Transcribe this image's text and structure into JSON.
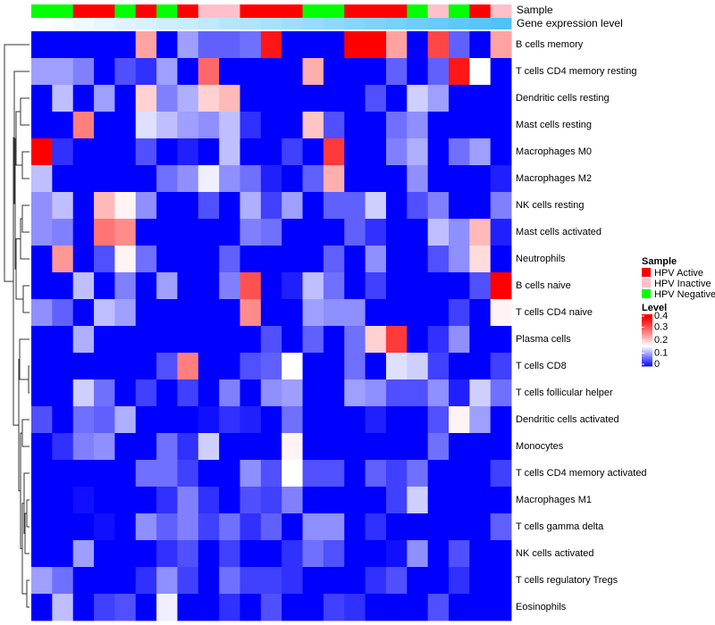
{
  "chart_data": {
    "type": "heatmap",
    "title": "",
    "annotation_labels": {
      "sample": "Sample",
      "gene": "Gene expression level"
    },
    "rows": [
      "B cells memory",
      "T cells CD4 memory resting",
      "Dendritic cells resting",
      "Mast cells resting",
      "Macrophages M0",
      "Macrophages M2",
      "NK cells resting",
      "Mast cells activated",
      "Neutrophils",
      "B cells naive",
      "T cells CD4 naive",
      "Plasma cells",
      "T cells CD8",
      "T cells follicular helper",
      "Dendritic cells activated",
      "Monocytes",
      "T cells CD4 memory activated",
      "Macrophages M1",
      "T cells gamma delta",
      "NK cells activated",
      "T cells regulatory  Tregs",
      "Eosinophils"
    ],
    "column_sample": [
      "HPV Negative",
      "HPV Negative",
      "HPV Active",
      "HPV Active",
      "HPV Negative",
      "HPV Active",
      "HPV Negative",
      "HPV Active",
      "HPV Inactive",
      "HPV Inactive",
      "HPV Active",
      "HPV Active",
      "HPV Active",
      "HPV Negative",
      "HPV Negative",
      "HPV Active",
      "HPV Active",
      "HPV Active",
      "HPV Negative",
      "HPV Inactive",
      "HPV Negative",
      "HPV Active",
      "HPV Inactive"
    ],
    "column_gene_expression_level": [
      0,
      0.045,
      0.09,
      0.136,
      0.18,
      0.227,
      0.27,
      0.318,
      0.36,
      0.41,
      0.45,
      0.5,
      0.545,
      0.59,
      0.636,
      0.68,
      0.727,
      0.77,
      0.818,
      0.86,
      0.91,
      0.955,
      1
    ],
    "values": [
      [
        0,
        0,
        0,
        0,
        0,
        0.24,
        0,
        0.1,
        0.06,
        0.06,
        0.07,
        0.36,
        0,
        0,
        0,
        0.38,
        0.38,
        0.24,
        0,
        0.32,
        0.06,
        0,
        0.24
      ],
      [
        0.1,
        0.1,
        0.08,
        0,
        0.05,
        0.03,
        0.1,
        0,
        0.29,
        0,
        0,
        0,
        0,
        0.23,
        0,
        0,
        0,
        0.06,
        0,
        0.06,
        0.36,
        0.16,
        0
      ],
      [
        0,
        0.12,
        0,
        0.1,
        0,
        0.2,
        0.08,
        0.11,
        0.2,
        0.22,
        0,
        0,
        0,
        0,
        0,
        0,
        0.05,
        0,
        0.13,
        0.1,
        0,
        0,
        0
      ],
      [
        0,
        0,
        0.27,
        0,
        0,
        0.14,
        0.12,
        0.1,
        0.09,
        0.12,
        0.03,
        0,
        0,
        0.21,
        0.05,
        0,
        0,
        0.07,
        0.09,
        0,
        0,
        0,
        0
      ],
      [
        0.38,
        0.03,
        0,
        0,
        0,
        0.05,
        0,
        0.02,
        0,
        0.12,
        0,
        0,
        0.04,
        0,
        0.33,
        0,
        0,
        0.08,
        0.11,
        0,
        0.07,
        0.1,
        0
      ],
      [
        0.12,
        0,
        0,
        0,
        0,
        0,
        0.07,
        0.09,
        0.15,
        0.09,
        0.07,
        0.02,
        0,
        0.06,
        0.23,
        0,
        0,
        0,
        0.09,
        0,
        0,
        0,
        0.02
      ],
      [
        0.09,
        0.12,
        0,
        0.22,
        0.17,
        0.09,
        0,
        0,
        0.05,
        0,
        0.11,
        0.04,
        0.1,
        0,
        0.06,
        0.06,
        0.13,
        0,
        0.05,
        0.08,
        0,
        0,
        0.08
      ],
      [
        0.09,
        0.08,
        0,
        0.28,
        0.26,
        0,
        0,
        0,
        0,
        0,
        0.08,
        0.07,
        0,
        0,
        0,
        0.06,
        0.03,
        0,
        0,
        0.12,
        0.09,
        0.22,
        0.02
      ],
      [
        0,
        0.25,
        0,
        0.05,
        0.17,
        0.07,
        0,
        0,
        0,
        0.06,
        0,
        0,
        0,
        0,
        0.06,
        0,
        0.09,
        0,
        0,
        0.05,
        0.09,
        0.19,
        0
      ],
      [
        0,
        0,
        0.12,
        0,
        0.08,
        0,
        0.1,
        0,
        0,
        0.08,
        0.31,
        0,
        0.02,
        0.12,
        0.07,
        0,
        0.04,
        0,
        0,
        0,
        0,
        0.05,
        0.38
      ],
      [
        0.09,
        0.06,
        0,
        0.12,
        0.1,
        0,
        0,
        0,
        0,
        0,
        0.26,
        0,
        0,
        0.1,
        0.09,
        0.09,
        0,
        0,
        0,
        0,
        0.04,
        0,
        0.17
      ],
      [
        0,
        0,
        0.11,
        0,
        0,
        0,
        0,
        0,
        0,
        0,
        0,
        0.05,
        0,
        0.06,
        0,
        0.07,
        0.2,
        0.33,
        0,
        0.03,
        0.09,
        0,
        0
      ],
      [
        0,
        0,
        0,
        0,
        0,
        0,
        0.05,
        0.27,
        0,
        0,
        0.05,
        0.06,
        0.16,
        0,
        0,
        0.07,
        0,
        0.14,
        0.13,
        0.04,
        0,
        0,
        0.04
      ],
      [
        0,
        0,
        0.13,
        0.07,
        0,
        0.04,
        0,
        0.04,
        0,
        0.08,
        0,
        0.09,
        0.1,
        0,
        0,
        0.1,
        0.09,
        0.05,
        0.05,
        0.09,
        0.02,
        0.13,
        0.07
      ],
      [
        0.05,
        0,
        0.07,
        0.06,
        0.11,
        0,
        0,
        0,
        0.01,
        0.03,
        0.02,
        0,
        0.07,
        0,
        0,
        0,
        0.02,
        0,
        0,
        0.05,
        0.17,
        0.1,
        0
      ],
      [
        0,
        0.03,
        0.08,
        0.09,
        0,
        0,
        0.07,
        0.03,
        0.13,
        0,
        0,
        0,
        0.17,
        0,
        0,
        0,
        0,
        0,
        0,
        0.07,
        0,
        0,
        0
      ],
      [
        0,
        0,
        0,
        0,
        0,
        0.07,
        0.07,
        0.04,
        0,
        0,
        0.09,
        0.05,
        0.16,
        0.05,
        0.05,
        0,
        0.06,
        0.04,
        0.07,
        0,
        0,
        0,
        0.04
      ],
      [
        0,
        0,
        0.01,
        0,
        0,
        0,
        0.03,
        0.08,
        0.03,
        0,
        0.05,
        0.04,
        0.08,
        0,
        0,
        0,
        0,
        0.04,
        0.13,
        0,
        0,
        0,
        0
      ],
      [
        0,
        0,
        0,
        0.01,
        0,
        0.09,
        0.06,
        0.08,
        0.04,
        0.07,
        0.03,
        0.06,
        0,
        0.09,
        0.09,
        0,
        0.03,
        0,
        0,
        0,
        0,
        0,
        0.06
      ],
      [
        0,
        0,
        0.1,
        0,
        0,
        0,
        0.03,
        0.05,
        0,
        0.04,
        0,
        0,
        0.03,
        0.07,
        0.05,
        0,
        0,
        0.01,
        0.09,
        0,
        0.05,
        0,
        0
      ],
      [
        0.1,
        0.07,
        0,
        0,
        0,
        0.03,
        0.09,
        0.04,
        0,
        0.07,
        0.04,
        0.04,
        0.03,
        0,
        0,
        0,
        0.03,
        0.05,
        0,
        0,
        0.03,
        0,
        0
      ],
      [
        0,
        0.12,
        0,
        0.04,
        0.05,
        0,
        0.15,
        0,
        0,
        0.03,
        0,
        0.05,
        0,
        0,
        0.04,
        0.03,
        0,
        0,
        0,
        0.05,
        0,
        0,
        0
      ]
    ],
    "color_scale": {
      "low": "#0000FF",
      "mid": "#FFFFFF",
      "high": "#FF0000",
      "range": [
        0,
        0.4
      ]
    },
    "legend": {
      "placement": "right",
      "sample_title": "Sample",
      "sample_items": [
        {
          "label": "HPV Active",
          "color": "#FF0000"
        },
        {
          "label": "HPV Inactive",
          "color": "#FFC0CB"
        },
        {
          "label": "HPV Negative",
          "color": "#00FF00"
        }
      ],
      "level_title": "Level",
      "level_ticks": [
        "0.4",
        "0.3",
        "0.2",
        "0.1",
        "0"
      ],
      "level_tick_values": [
        0.4,
        0.3,
        0.2,
        0.1,
        0
      ]
    },
    "gene_colors": {
      "low": "#FFFFFF",
      "high": "#4FC3F7"
    },
    "row_dendrogram": true
  }
}
